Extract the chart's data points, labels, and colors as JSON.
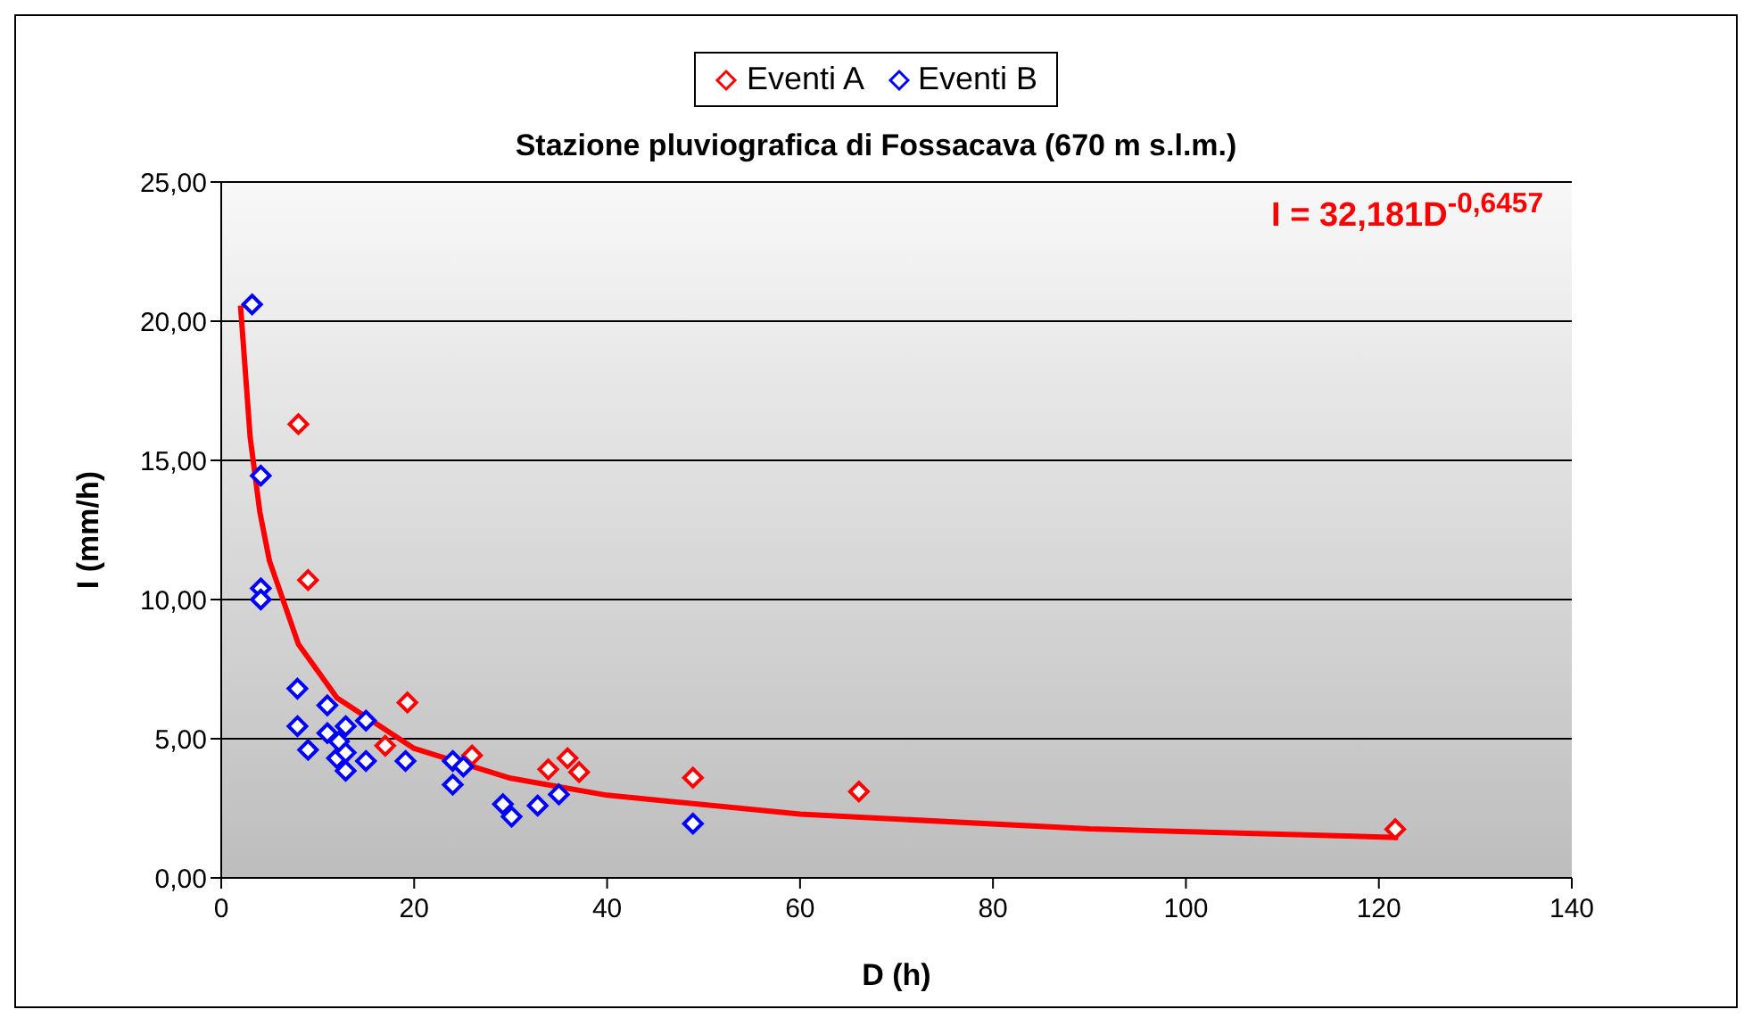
{
  "chart_data": {
    "type": "scatter",
    "title": "Stazione pluviografica di Fossacava (670 m s.l.m.)",
    "xlabel": "D (h)",
    "ylabel": "I (mm/h)",
    "annotations": [
      "I = 32,181D$^{-0,6457}$"
    ],
    "xlim": [
      0,
      140
    ],
    "xticks": [
      0,
      20,
      40,
      60,
      80,
      100,
      120,
      140
    ],
    "ylim": [
      0,
      25
    ],
    "yticks": [
      {
        "value": 0,
        "label": "0,00"
      },
      {
        "value": 5,
        "label": "5,00"
      },
      {
        "value": 10,
        "label": "10,00"
      },
      {
        "value": 15,
        "label": "15,00"
      },
      {
        "value": 20,
        "label": "20,00"
      },
      {
        "value": 25,
        "label": "25,00"
      }
    ],
    "grid": "y",
    "legend": "top",
    "marker": "diamond",
    "series": [
      {
        "name": "Eventi A",
        "color": "#ff0000",
        "x": [
          8,
          9,
          11.5,
          17,
          19.3,
          26,
          33.9,
          35.9,
          37.1,
          48.9,
          66.1,
          121.7
        ],
        "values": [
          16.3,
          10.7,
          null,
          4.75,
          6.3,
          4.4,
          3.9,
          4.3,
          3.8,
          3.6,
          3.1,
          1.75
        ]
      },
      {
        "name": "Eventi B",
        "color": "#0000ff",
        "x": [
          3.2,
          4.1,
          4.1,
          4.1,
          7.9,
          7.9,
          9,
          11,
          11,
          12.2,
          12.9,
          12,
          12.9,
          12.9,
          15,
          15,
          19.1,
          24,
          25.1,
          24,
          29.2,
          30.1,
          32.8,
          35,
          48.9
        ],
        "values": [
          20.6,
          14.45,
          10.4,
          10,
          6.8,
          5.45,
          4.6,
          6.2,
          5.2,
          4.9,
          5.45,
          4.3,
          4.5,
          3.85,
          5.65,
          4.2,
          4.2,
          4.2,
          4,
          3.35,
          2.65,
          2.2,
          2.6,
          3,
          1.95
        ]
      },
      {
        "type": "line",
        "color": "#ff0000",
        "marker": "none",
        "x": [
          2,
          3,
          4,
          5,
          8,
          12,
          20,
          30,
          40,
          60,
          90,
          122
        ],
        "values": [
          20.56,
          15.83,
          13.15,
          11.39,
          8.4,
          6.47,
          4.65,
          3.58,
          2.97,
          2.29,
          1.76,
          1.45
        ]
      }
    ]
  }
}
